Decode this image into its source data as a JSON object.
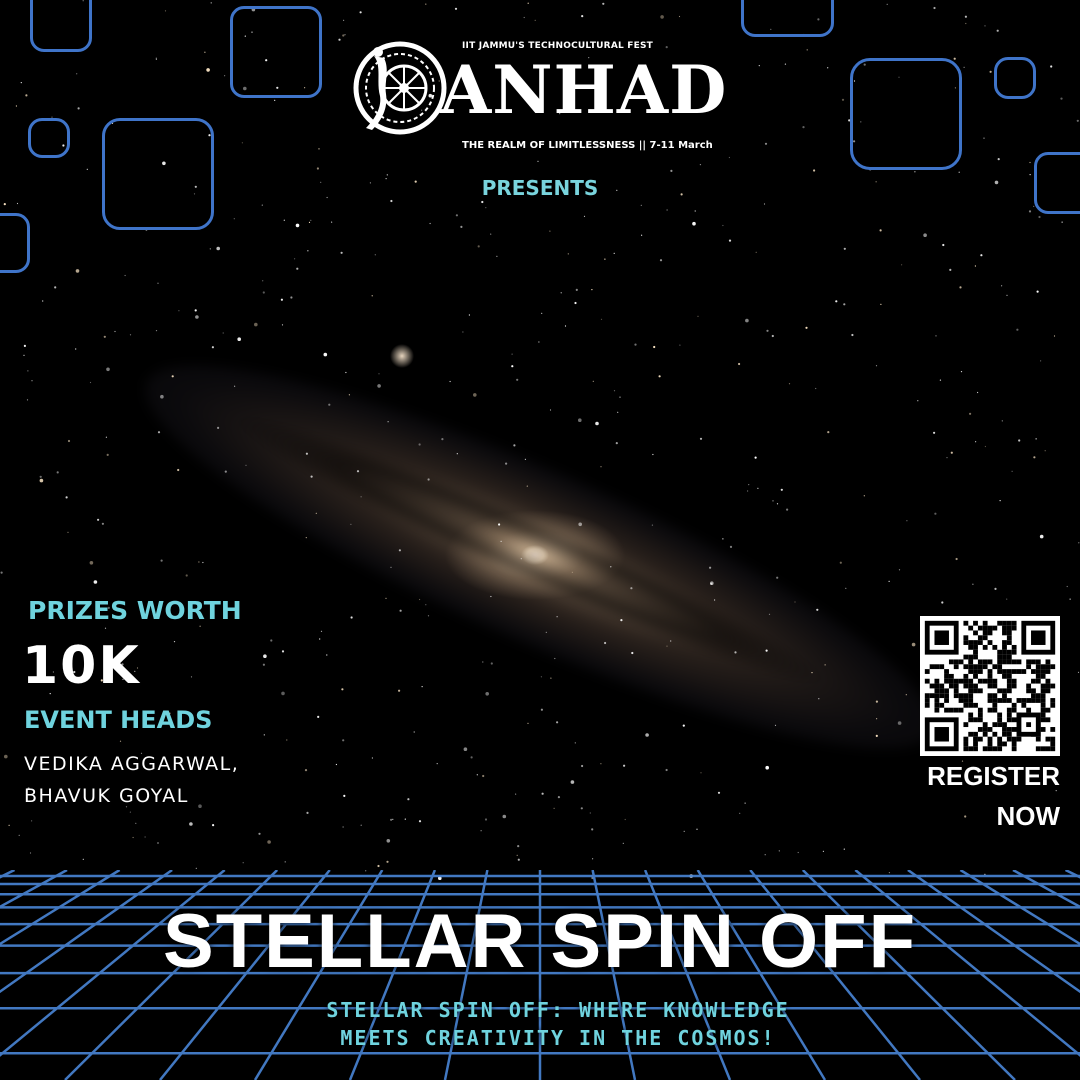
{
  "logo": {
    "fest_caption": "IIT JAMMU'S TECHNOCULTURAL FEST",
    "name": "ANHAD",
    "tagline": "THE REALM OF LIMITLESSNESS || 7-11 March"
  },
  "presents": "PRESENTS",
  "prizes": {
    "label": "PRIZES WORTH",
    "amount": "10K"
  },
  "event_heads": {
    "label": "EVENT HEADS",
    "names": [
      "VEDIKA AGGARWAL,",
      "BHAVUK GOYAL"
    ]
  },
  "register": {
    "qr_icon": "qr-code-icon",
    "line1": "REGISTER",
    "line2": "NOW"
  },
  "event": {
    "title": "STELLAR SPIN OFF",
    "tagline_lines": [
      "STELLAR SPIN OFF: WHERE KNOWLEDGE",
      "MEETS CREATIVITY IN THE COSMOS!"
    ]
  },
  "colors": {
    "accent_cyan": "#6fd3de",
    "frame_blue": "#3f74c9",
    "grid_blue": "#4a86d6",
    "background": "#000000"
  }
}
